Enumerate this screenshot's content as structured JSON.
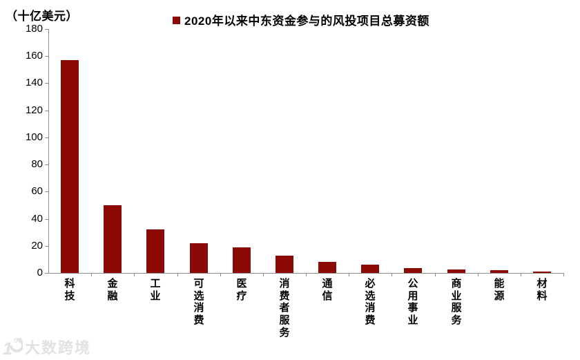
{
  "chart": {
    "unit_label": "（十亿美元）",
    "legend_label": "2020年以来中东资金参与的风投项目总募资额"
  },
  "watermark": {
    "logo_1": "1",
    "logo_00": "00",
    "text": "大数跨境"
  },
  "chart_data": {
    "type": "bar",
    "title": "2020年以来中东资金参与的风投项目总募资额",
    "unit": "十亿美元",
    "categories": [
      "科技",
      "金融",
      "工业",
      "可选消费",
      "医疗",
      "消费者服务",
      "通信",
      "必选消费",
      "公用事业",
      "商业服务",
      "能源",
      "材料"
    ],
    "values": [
      157,
      50,
      32,
      22,
      19,
      13,
      8,
      6,
      3.5,
      2.5,
      2,
      1
    ],
    "xlabel": "",
    "ylabel": "十亿美元",
    "ylim": [
      0,
      180
    ],
    "y_ticks": [
      0,
      20,
      40,
      60,
      80,
      100,
      120,
      140,
      160,
      180
    ],
    "grid": false,
    "legend_position": "top-center",
    "bar_color": "#8B0A06",
    "axis_color": "#8C8C8C",
    "text_color": "#000000"
  }
}
